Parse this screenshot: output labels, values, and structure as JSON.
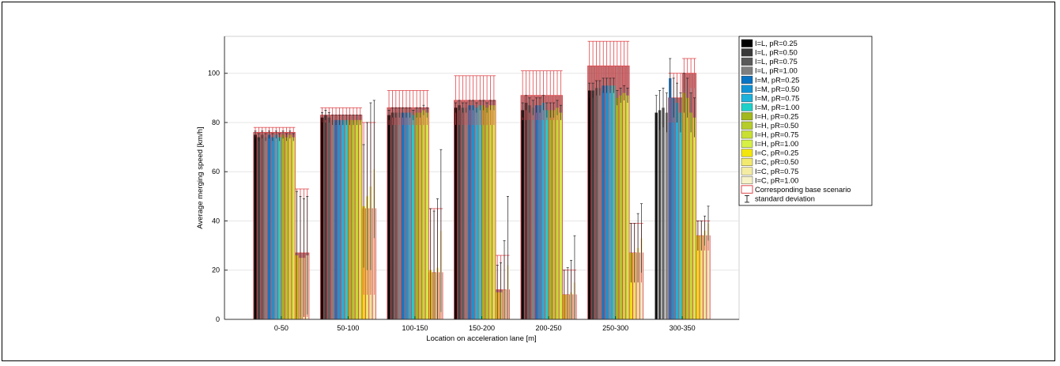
{
  "chart_data": {
    "type": "bar",
    "xlabel": "Location on acceleration lane [m]",
    "ylabel": "Average merging speed [km/h]",
    "ylim": [
      0,
      115
    ],
    "yticks": [
      0,
      20,
      40,
      60,
      80,
      100
    ],
    "grid": true,
    "legend_position": "top-right outside",
    "categories": [
      "0-50",
      "50-100",
      "100-150",
      "150-200",
      "200-250",
      "250-300",
      "300-350"
    ],
    "series": [
      {
        "name": "I=L, pR=0.25",
        "color": "#000000",
        "values": [
          75,
          82,
          83,
          86,
          85,
          93,
          84
        ],
        "std": [
          1.5,
          2,
          2,
          2,
          3,
          3,
          7
        ]
      },
      {
        "name": "I=L, pR=0.50",
        "color": "#3a3a3a",
        "values": [
          74,
          83,
          84,
          87,
          88,
          93,
          85
        ],
        "std": [
          1.5,
          2,
          2,
          2,
          3,
          3,
          8
        ]
      },
      {
        "name": "I=L, pR=0.75",
        "color": "#5a5a5a",
        "values": [
          75,
          82,
          84,
          86,
          87,
          94,
          86
        ],
        "std": [
          1.5,
          2,
          2,
          2,
          3,
          3,
          8
        ]
      },
      {
        "name": "I=L, pR=1.00",
        "color": "#7f7f7f",
        "values": [
          74,
          81,
          84,
          86,
          86,
          94,
          84
        ],
        "std": [
          1.5,
          2,
          2,
          2,
          3,
          3,
          8
        ]
      },
      {
        "name": "I=M, pR=0.25",
        "color": "#0a74c4",
        "values": [
          75,
          81,
          84,
          87,
          87,
          95,
          98
        ],
        "std": [
          1.5,
          2,
          2,
          2,
          3,
          3,
          8
        ]
      },
      {
        "name": "I=M, pR=0.50",
        "color": "#1192d4",
        "values": [
          74,
          81,
          84,
          87,
          87,
          95,
          90
        ],
        "std": [
          1.5,
          2,
          2,
          2,
          3,
          3,
          8
        ]
      },
      {
        "name": "I=M, pR=0.75",
        "color": "#1cb2dc",
        "values": [
          75,
          81,
          84,
          86,
          88,
          95,
          88
        ],
        "std": [
          1.5,
          2,
          2,
          2,
          3,
          3,
          8
        ]
      },
      {
        "name": "I=M, pR=1.00",
        "color": "#1fd0c8",
        "values": [
          74,
          81,
          83,
          87,
          85,
          95,
          84
        ],
        "std": [
          1.5,
          2,
          2,
          2,
          3,
          3,
          8
        ]
      },
      {
        "name": "I=H, pR=0.25",
        "color": "#a3b81c",
        "values": [
          75,
          81,
          84,
          87,
          85,
          90,
          92
        ],
        "std": [
          1.5,
          2,
          2,
          2,
          3,
          3,
          8
        ]
      },
      {
        "name": "I=H, pR=0.50",
        "color": "#b6cc2a",
        "values": [
          74,
          81,
          84,
          86,
          85,
          91,
          90
        ],
        "std": [
          1.5,
          2,
          2,
          2,
          3,
          3,
          8
        ]
      },
      {
        "name": "I=H, pR=0.75",
        "color": "#c9df32",
        "values": [
          75,
          81,
          85,
          87,
          86,
          92,
          84
        ],
        "std": [
          1.5,
          2,
          2,
          2,
          3,
          3,
          8
        ]
      },
      {
        "name": "I=H, pR=1.00",
        "color": "#d6f046",
        "values": [
          74,
          81,
          84,
          87,
          84,
          91,
          82
        ],
        "std": [
          1.5,
          2,
          2,
          2,
          3,
          3,
          8
        ]
      },
      {
        "name": "I=C, pR=0.25",
        "color": "#f2e60c",
        "values": [
          26,
          46,
          20,
          11,
          10,
          27,
          34
        ],
        "std": [
          26,
          25,
          25,
          11,
          10,
          12,
          6
        ]
      },
      {
        "name": "I=C, pR=0.50",
        "color": "#f2ea6e",
        "values": [
          25,
          50,
          19,
          11,
          10,
          27,
          34
        ],
        "std": [
          25,
          30,
          25,
          12,
          11,
          12,
          6
        ]
      },
      {
        "name": "I=C, pR=0.75",
        "color": "#f4eca2",
        "values": [
          25,
          54,
          21,
          12,
          11,
          29,
          36
        ],
        "std": [
          24,
          34,
          28,
          20,
          13,
          14,
          6
        ]
      },
      {
        "name": "I=C, pR=1.00",
        "color": "#f7f2c8",
        "values": [
          26,
          61,
          36,
          22,
          15,
          33,
          39
        ],
        "std": [
          24,
          28,
          33,
          28,
          19,
          14,
          7
        ]
      }
    ],
    "base_scenario": {
      "name": "Corresponding base scenario",
      "color": "#e0474c",
      "values": [
        [
          76,
          76,
          76,
          76,
          76,
          76,
          76,
          76,
          76,
          76,
          76,
          76,
          27,
          27,
          27,
          27
        ],
        [
          83,
          83,
          83,
          83,
          83,
          83,
          83,
          83,
          83,
          83,
          83,
          83,
          45,
          45,
          45,
          45
        ],
        [
          86,
          86,
          86,
          86,
          86,
          86,
          86,
          86,
          86,
          86,
          86,
          86,
          19,
          19,
          19,
          19
        ],
        [
          89,
          89,
          89,
          89,
          89,
          89,
          89,
          89,
          89,
          89,
          89,
          89,
          12,
          12,
          12,
          12
        ],
        [
          91,
          91,
          91,
          91,
          91,
          91,
          91,
          91,
          91,
          91,
          91,
          91,
          10,
          10,
          10,
          10
        ],
        [
          103,
          103,
          103,
          103,
          103,
          103,
          103,
          103,
          103,
          103,
          103,
          103,
          27,
          27,
          27,
          27
        ],
        [
          null,
          null,
          null,
          null,
          90,
          90,
          90,
          90,
          100,
          100,
          100,
          100,
          34,
          34,
          34,
          34
        ]
      ],
      "std": [
        [
          2,
          2,
          2,
          2,
          2,
          2,
          2,
          2,
          2,
          2,
          2,
          2,
          26,
          26,
          26,
          26
        ],
        [
          3,
          3,
          3,
          3,
          3,
          3,
          3,
          3,
          3,
          3,
          3,
          3,
          35,
          35,
          35,
          35
        ],
        [
          7,
          7,
          7,
          7,
          7,
          7,
          7,
          7,
          7,
          7,
          7,
          7,
          26,
          26,
          26,
          26
        ],
        [
          10,
          10,
          10,
          10,
          10,
          10,
          10,
          10,
          10,
          10,
          10,
          10,
          14,
          14,
          14,
          14
        ],
        [
          10,
          10,
          10,
          10,
          10,
          10,
          10,
          10,
          10,
          10,
          10,
          10,
          10,
          10,
          10,
          10
        ],
        [
          10,
          10,
          10,
          10,
          10,
          10,
          10,
          10,
          10,
          10,
          10,
          10,
          12,
          12,
          12,
          12
        ],
        [
          null,
          null,
          null,
          null,
          10,
          10,
          10,
          10,
          6,
          6,
          6,
          6,
          6,
          6,
          6,
          6
        ]
      ]
    },
    "std_label": "standard deviation"
  }
}
